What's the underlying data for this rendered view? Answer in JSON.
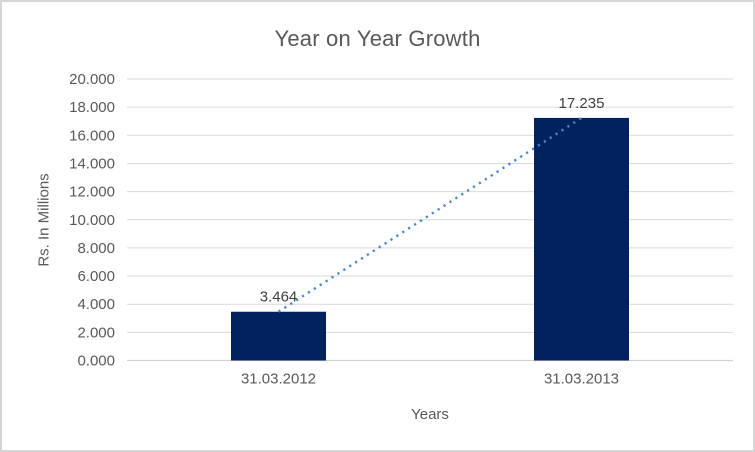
{
  "chart": {
    "title": "Year on Year Growth",
    "y_axis_title": "Rs. In Millions",
    "x_axis_title": "Years",
    "colors": {
      "bar": "#02215E",
      "trendline": "#4A86CB",
      "gridline": "#D9D9D9",
      "axis_line": "#D2D2D2",
      "title_text": "#595959",
      "axis_text": "#595959",
      "data_label_text": "#404040",
      "frame_border": "#D6D6D6",
      "background": "#FFFFFF"
    }
  },
  "chart_data": {
    "type": "bar",
    "title": "Year on Year Growth",
    "xlabel": "Years",
    "ylabel": "Rs. In Millions",
    "categories": [
      "31.03.2012",
      "31.03.2013"
    ],
    "values": [
      3.464,
      17.235
    ],
    "data_labels": [
      "3.464",
      "17.235"
    ],
    "y_ticks": [
      "20.000",
      "18.000",
      "16.000",
      "14.000",
      "12.000",
      "10.000",
      "8.000",
      "6.000",
      "4.000",
      "2.000",
      "0.000"
    ],
    "ylim": [
      0,
      20
    ],
    "grid": "horizontal-only",
    "legend": "none",
    "trendline": {
      "type": "linear",
      "style": "dotted",
      "connects_values": [
        3.464,
        17.235
      ]
    }
  }
}
